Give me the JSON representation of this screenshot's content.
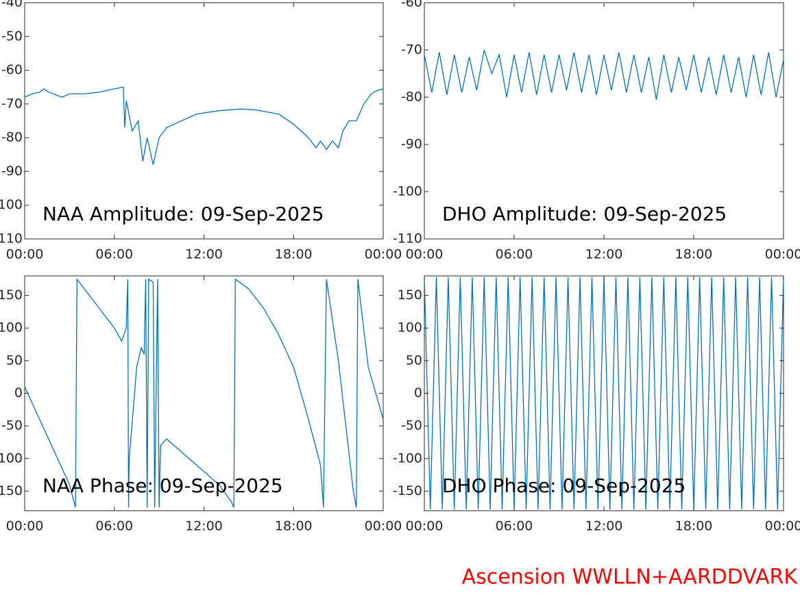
{
  "chart_data": [
    {
      "type": "line",
      "annotation": "NAA Amplitude: 09-Sep-2025",
      "color": "#0072bd",
      "x": [
        0,
        0.5,
        1,
        1.3,
        1.6,
        2.5,
        3,
        4,
        5,
        6,
        6.6,
        6.7,
        6.8,
        7.2,
        7.6,
        7.9,
        8.2,
        8.6,
        9.0,
        9.5,
        10.5,
        11.5,
        13,
        14.5,
        15.5,
        17,
        18,
        19,
        19.5,
        19.8,
        20.2,
        20.6,
        21,
        21.3,
        21.7,
        22.2,
        22.7,
        23.2,
        23.6,
        24
      ],
      "series": [
        {
          "name": "NAA",
          "values": [
            -68,
            -67,
            -66.5,
            -65.5,
            -66.5,
            -68,
            -67,
            -67,
            -66.5,
            -65.5,
            -65,
            -77,
            -69,
            -78,
            -75,
            -87,
            -80,
            -88,
            -80,
            -77,
            -75,
            -73,
            -72,
            -71.5,
            -71.8,
            -73,
            -76,
            -80,
            -83,
            -81,
            -83.5,
            -81,
            -83,
            -78,
            -75,
            -75,
            -70,
            -67,
            -66,
            -65.5
          ]
        }
      ],
      "xlim": [
        0,
        24
      ],
      "xticks": [
        {
          "value": 0,
          "label": "00:00"
        },
        {
          "value": 6,
          "label": "06:00"
        },
        {
          "value": 12,
          "label": "12:00"
        },
        {
          "value": 18,
          "label": "18:00"
        },
        {
          "value": 24,
          "label": "00:00"
        }
      ],
      "ylim": [
        -110,
        -40
      ],
      "yticks": [
        -110,
        -100,
        -90,
        -80,
        -70,
        -60,
        -50,
        -40
      ]
    },
    {
      "type": "line",
      "annotation": "DHO Amplitude: 09-Sep-2025",
      "color": "#0072bd",
      "x": [
        0,
        0.5,
        1,
        1.5,
        2,
        2.5,
        3,
        3.5,
        4,
        4.5,
        5,
        5.5,
        6,
        6.5,
        7,
        7.5,
        8,
        8.5,
        9,
        9.5,
        10,
        10.5,
        11,
        11.5,
        12,
        12.5,
        13,
        13.5,
        14,
        14.5,
        15,
        15.5,
        16,
        16.5,
        17,
        17.5,
        18,
        18.5,
        19,
        19.5,
        20,
        20.5,
        21,
        21.5,
        22,
        22.5,
        23,
        23.5,
        24
      ],
      "series": [
        {
          "name": "DHO",
          "values": [
            -71,
            -79,
            -70.5,
            -79.5,
            -71,
            -79,
            -71.5,
            -78.5,
            -70,
            -75,
            -71,
            -80,
            -71,
            -79,
            -70.5,
            -79.5,
            -71,
            -79,
            -71,
            -78.5,
            -70.5,
            -79,
            -71,
            -79.5,
            -71,
            -78.5,
            -70.5,
            -79,
            -71,
            -79,
            -71.5,
            -80.5,
            -71,
            -79,
            -71.5,
            -78.5,
            -71,
            -79,
            -71.5,
            -79.5,
            -71,
            -79,
            -71.5,
            -80,
            -71,
            -79.5,
            -70.5,
            -80,
            -72
          ]
        }
      ],
      "xlim": [
        0,
        24
      ],
      "xticks": [
        {
          "value": 0,
          "label": "00:00"
        },
        {
          "value": 6,
          "label": "06:00"
        },
        {
          "value": 12,
          "label": "12:00"
        },
        {
          "value": 18,
          "label": "18:00"
        },
        {
          "value": 24,
          "label": "00:00"
        }
      ],
      "ylim": [
        -110,
        -60
      ],
      "yticks": [
        -110,
        -100,
        -90,
        -80,
        -70,
        -60
      ]
    },
    {
      "type": "line",
      "annotation": "NAA Phase: 09-Sep-2025",
      "color": "#0072bd",
      "x": [
        0,
        1,
        2,
        3,
        3.4,
        3.5,
        4,
        5,
        6,
        6.5,
        6.8,
        6.9,
        6.95,
        7,
        7.5,
        7.8,
        8,
        8.1,
        8.2,
        8.3,
        8.6,
        8.7,
        8.9,
        9,
        9.1,
        9.5,
        10,
        11,
        12,
        13,
        13.8,
        14,
        14.1,
        15,
        16,
        17,
        18,
        19,
        19.8,
        20,
        20.2,
        21,
        21.5,
        22,
        22.2,
        22.3,
        23,
        24
      ],
      "series": [
        {
          "name": "NAA",
          "values": [
            10,
            -40,
            -90,
            -140,
            -175,
            175,
            160,
            130,
            100,
            80,
            100,
            175,
            -175,
            -100,
            40,
            70,
            60,
            175,
            -175,
            175,
            170,
            -175,
            175,
            -175,
            -80,
            -70,
            -80,
            -100,
            -120,
            -140,
            -165,
            -175,
            175,
            160,
            130,
            90,
            40,
            -40,
            -110,
            -175,
            175,
            50,
            -50,
            -150,
            -175,
            175,
            40,
            -40
          ]
        }
      ],
      "xlim": [
        0,
        24
      ],
      "xticks": [
        {
          "value": 0,
          "label": "00:00"
        },
        {
          "value": 6,
          "label": "06:00"
        },
        {
          "value": 12,
          "label": "12:00"
        },
        {
          "value": 18,
          "label": "18:00"
        },
        {
          "value": 24,
          "label": "00:00"
        }
      ],
      "ylim": [
        -180,
        180
      ],
      "yticks": [
        -150,
        -100,
        -50,
        0,
        50,
        100,
        150
      ]
    },
    {
      "type": "line",
      "annotation": "DHO Phase: 09-Sep-2025",
      "color": "#0072bd",
      "x": [
        0,
        0.4,
        0.8,
        1.2,
        1.6,
        2,
        2.4,
        2.8,
        3.2,
        3.6,
        4,
        4.4,
        4.8,
        5.2,
        5.6,
        6,
        6.4,
        6.8,
        7.2,
        7.6,
        8,
        8.4,
        8.8,
        9.2,
        9.6,
        10,
        10.4,
        10.8,
        11.2,
        11.6,
        12,
        12.4,
        12.8,
        13.2,
        13.6,
        14,
        14.4,
        14.8,
        15.2,
        15.6,
        16,
        16.4,
        16.8,
        17.2,
        17.6,
        18,
        18.4,
        18.8,
        19.2,
        19.6,
        20,
        20.4,
        20.8,
        21.2,
        21.6,
        22,
        22.4,
        22.8,
        23.2,
        23.6,
        24
      ],
      "series": [
        {
          "name": "DHO",
          "values": [
            178,
            -178,
            178,
            -178,
            178,
            -178,
            178,
            -178,
            178,
            -178,
            178,
            -178,
            178,
            -178,
            178,
            -178,
            178,
            -178,
            178,
            -178,
            178,
            -178,
            178,
            -178,
            178,
            -178,
            178,
            -178,
            178,
            -178,
            178,
            -178,
            178,
            -178,
            178,
            -178,
            178,
            -178,
            178,
            -178,
            178,
            -178,
            178,
            -178,
            178,
            -178,
            178,
            -178,
            178,
            -178,
            178,
            -178,
            178,
            -178,
            178,
            -178,
            178,
            -178,
            178,
            -178,
            178
          ]
        }
      ],
      "xlim": [
        0,
        24
      ],
      "xticks": [
        {
          "value": 0,
          "label": "00:00"
        },
        {
          "value": 6,
          "label": "06:00"
        },
        {
          "value": 12,
          "label": "12:00"
        },
        {
          "value": 18,
          "label": "18:00"
        },
        {
          "value": 24,
          "label": "00:00"
        }
      ],
      "ylim": [
        -180,
        180
      ],
      "yticks": [
        -150,
        -100,
        -50,
        0,
        50,
        100,
        150
      ]
    }
  ],
  "footer": "Ascension WWLLN+AARDDVARK"
}
